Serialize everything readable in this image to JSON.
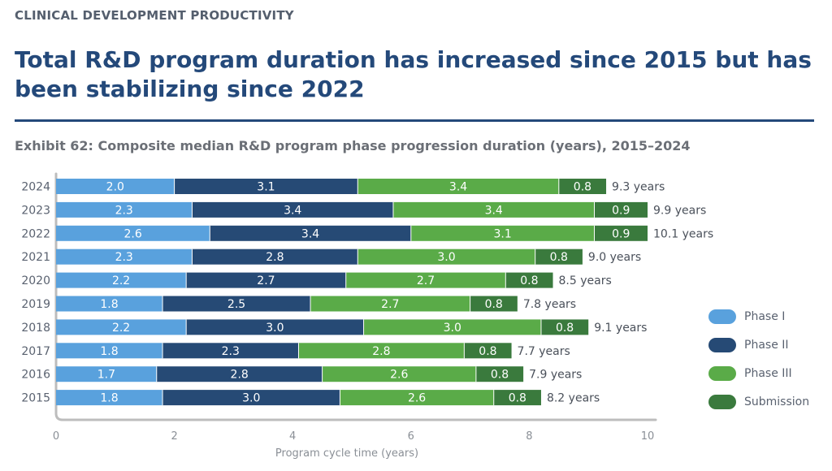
{
  "header": {
    "eyebrow": "CLINICAL DEVELOPMENT PRODUCTIVITY",
    "headline": "Total R&D program duration has increased since 2015 but has been stabilizing since 2022",
    "exhibit": "Exhibit 62: Composite median R&D program phase progression duration (years), 2015–2024"
  },
  "chart_data": {
    "type": "bar",
    "orientation": "horizontal",
    "stacked": true,
    "categories": [
      "2024",
      "2023",
      "2022",
      "2021",
      "2020",
      "2019",
      "2018",
      "2017",
      "2016",
      "2015"
    ],
    "series": [
      {
        "name": "Phase I",
        "color": "#59a1dd",
        "values": [
          2.0,
          2.3,
          2.6,
          2.3,
          2.2,
          1.8,
          2.2,
          1.8,
          1.7,
          1.8
        ]
      },
      {
        "name": "Phase II",
        "color": "#264a75",
        "values": [
          3.1,
          3.4,
          3.4,
          2.8,
          2.7,
          2.5,
          3.0,
          2.3,
          2.8,
          3.0
        ]
      },
      {
        "name": "Phase III",
        "color": "#5aab48",
        "values": [
          3.4,
          3.4,
          3.1,
          3.0,
          2.7,
          2.7,
          3.0,
          2.8,
          2.6,
          2.6
        ]
      },
      {
        "name": "Submission",
        "color": "#3a7a3d",
        "values": [
          0.8,
          0.9,
          0.9,
          0.8,
          0.8,
          0.8,
          0.8,
          0.8,
          0.8,
          0.8
        ]
      }
    ],
    "totals": [
      "9.3 years",
      "9.9 years",
      "10.1 years",
      "9.0 years",
      "8.5 years",
      "7.8 years",
      "9.1 years",
      "7.7 years",
      "7.9 years",
      "8.2 years"
    ],
    "xlabel": "Program cycle time (years)",
    "xlim": [
      0,
      10
    ],
    "xticks": [
      "0",
      "2",
      "4",
      "6",
      "8",
      "10"
    ],
    "legend_position": "right",
    "grid": false
  }
}
